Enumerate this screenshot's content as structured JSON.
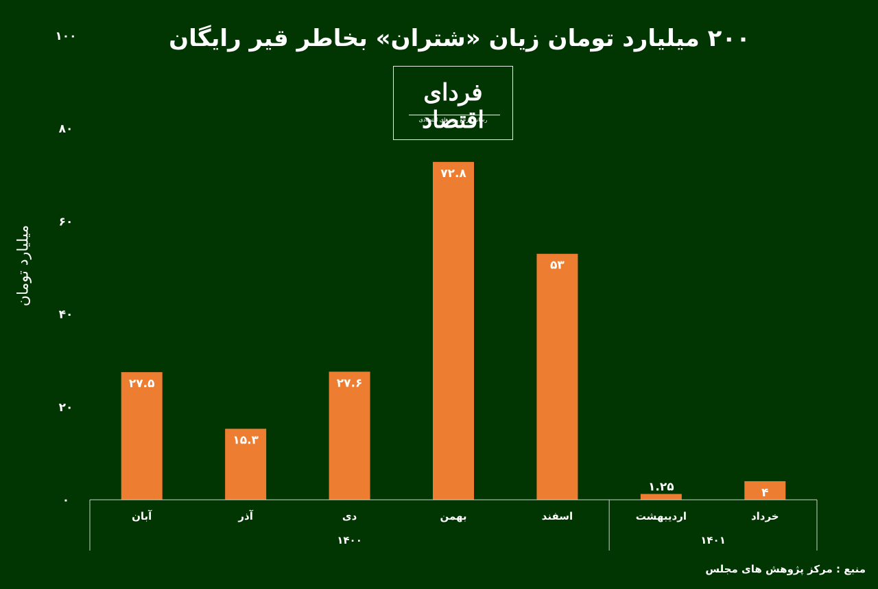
{
  "chart_data": {
    "type": "bar",
    "title": "۲۰۰ میلیارد تومان زیان «شتران» بخاطر قیر رایگان",
    "ylabel": "میلیارد تومان",
    "ylim": [
      0,
      100
    ],
    "y_ticks": [
      0,
      20,
      40,
      60,
      80,
      100
    ],
    "y_tick_labels": [
      "۰",
      "۲۰",
      "۴۰",
      "۶۰",
      "۸۰",
      "۱۰۰"
    ],
    "categories": [
      "آبان",
      "آذر",
      "دی",
      "بهمن",
      "اسفند",
      "اردیبهشت",
      "خرداد"
    ],
    "values": [
      27.5,
      15.3,
      27.6,
      72.8,
      53,
      1.25,
      4
    ],
    "value_labels": [
      "۲۷.۵",
      "۱۵.۳",
      "۲۷.۶",
      "۷۲.۸",
      "۵۳",
      "۱.۲۵",
      "۴"
    ],
    "groups": [
      {
        "name": "۱۴۰۰",
        "count": 5
      },
      {
        "name": "۱۴۰۱",
        "count": 2
      }
    ],
    "bar_color": "#ED7D31",
    "background_color": "#013502",
    "grid": false
  },
  "logo": {
    "name": "فردای اقتصاد",
    "tagline": "رسانه مرجع روندهای اقتصادی"
  },
  "source": "منبع : مرکز پژوهش های مجلس"
}
